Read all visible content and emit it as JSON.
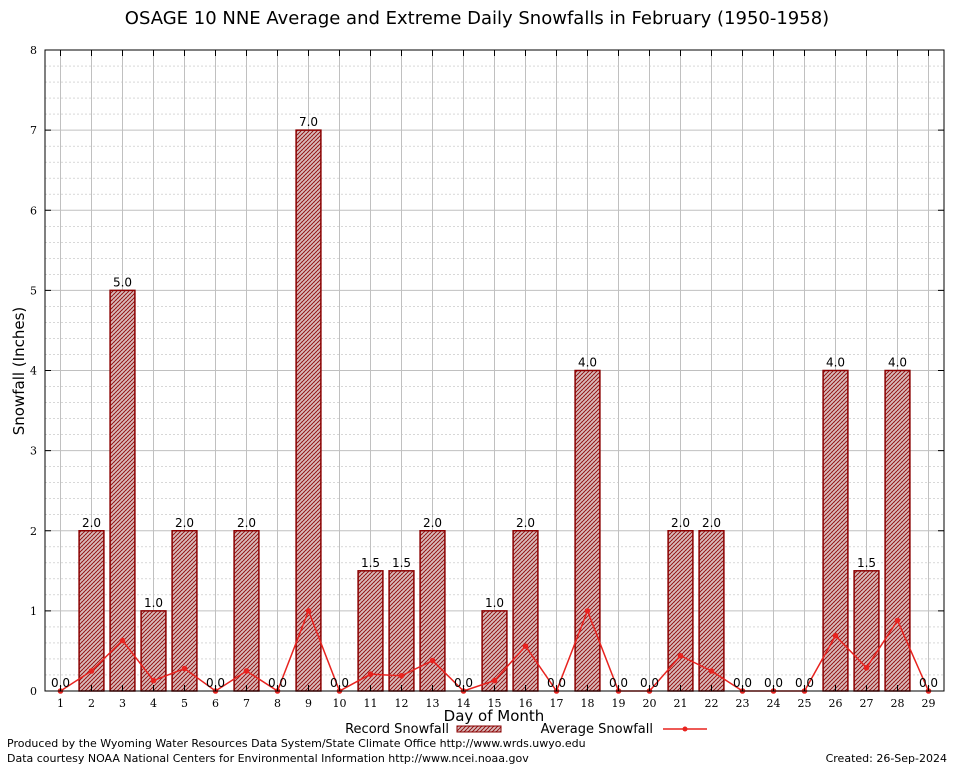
{
  "chart_data": {
    "type": "bar",
    "title": "OSAGE 10 NNE Average and Extreme Daily Snowfalls in February (1950-1958)",
    "xlabel": "Day of Month",
    "ylabel": "Snowfall (Inches)",
    "ylim": [
      0,
      8
    ],
    "yticks": [
      "0",
      "1",
      "2",
      "3",
      "4",
      "5",
      "6",
      "7",
      "8"
    ],
    "categories": [
      "1",
      "2",
      "3",
      "4",
      "5",
      "6",
      "7",
      "8",
      "9",
      "10",
      "11",
      "12",
      "13",
      "14",
      "15",
      "16",
      "17",
      "18",
      "19",
      "20",
      "21",
      "22",
      "23",
      "24",
      "25",
      "26",
      "27",
      "28",
      "29"
    ],
    "series": [
      {
        "name": "Record Snowfall",
        "kind": "bar",
        "values": [
          0.0,
          2.0,
          5.0,
          1.0,
          2.0,
          0.0,
          2.0,
          0.0,
          7.0,
          0.0,
          1.5,
          1.5,
          2.0,
          0.0,
          1.0,
          2.0,
          0.0,
          4.0,
          0.0,
          0.0,
          2.0,
          2.0,
          0.0,
          0.0,
          0.0,
          4.0,
          1.5,
          4.0,
          0.0
        ],
        "labels": [
          "0.0",
          "2.0",
          "5.0",
          "1.0",
          "2.0",
          "0.0",
          "2.0",
          "0.0",
          "7.0",
          "0.0",
          "1.5",
          "1.5",
          "2.0",
          "0.0",
          "1.0",
          "2.0",
          "0.0",
          "4.0",
          "0.0",
          "0.0",
          "2.0",
          "2.0",
          "0.0",
          "0.0",
          "0.0",
          "4.0",
          "1.5",
          "4.0",
          "0.0"
        ]
      },
      {
        "name": "Average Snowfall",
        "kind": "line",
        "values": [
          0.0,
          0.25,
          0.63,
          0.13,
          0.28,
          0.0,
          0.25,
          0.0,
          1.0,
          0.0,
          0.21,
          0.19,
          0.38,
          0.0,
          0.13,
          0.56,
          0.0,
          1.0,
          0.0,
          0.0,
          0.44,
          0.25,
          0.0,
          0.0,
          0.0,
          0.69,
          0.29,
          0.88,
          0.0
        ]
      }
    ],
    "grid": true,
    "legend": "bottom",
    "colors": {
      "bar_fill": "#c9a3a3",
      "bar_edge": "#8b0000",
      "line": "#e8231f",
      "grid": "#c0c0c0"
    }
  },
  "footer": {
    "produced_by": "Produced by the Wyoming Water Resources Data System/State Climate Office http://www.wrds.uwyo.edu",
    "courtesy": "Data courtesy NOAA National Centers for Environmental Information http://www.ncei.noaa.gov",
    "created": "Created: 26-Sep-2024"
  }
}
